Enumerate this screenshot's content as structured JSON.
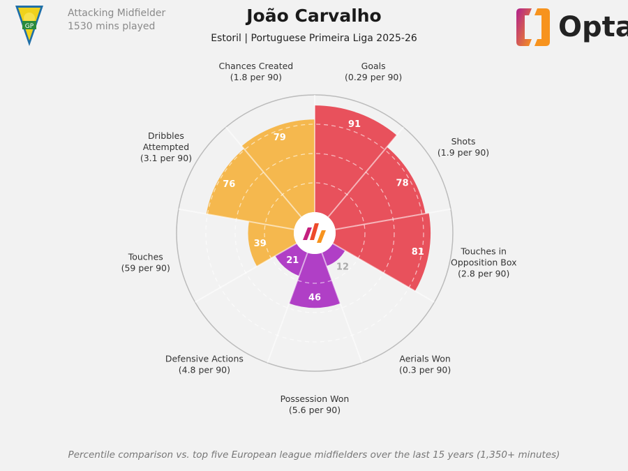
{
  "header": {
    "position": "Attacking Midfielder",
    "minutes": "1530 mins played",
    "player": "João Carvalho",
    "team_league": "Estoril | Portuguese Primeira Liga 2025-26",
    "brand": "Opta"
  },
  "footer": "Percentile comparison vs. top five European league midfielders over the last 15 years (1,350+ minutes)",
  "colors": {
    "attacking": "#e8515c",
    "possession": "#f5b84e",
    "defending": "#b03fc6",
    "background": "#f2f2f2"
  },
  "chart_data": {
    "type": "pie",
    "subtype": "polar-bar (pizza)",
    "range": [
      0,
      100
    ],
    "categories": [
      {
        "label": "Goals",
        "per90": "(0.29 per 90)",
        "value": 91,
        "group": "attacking"
      },
      {
        "label": "Shots",
        "per90": "(1.9 per 90)",
        "value": 78,
        "group": "attacking"
      },
      {
        "label": "Touches in Opposition Box",
        "per90": "(2.8 per 90)",
        "value": 81,
        "group": "attacking"
      },
      {
        "label": "Aerials Won",
        "per90": "(0.3 per 90)",
        "value": 12,
        "group": "defending"
      },
      {
        "label": "Possession Won",
        "per90": "(5.6 per 90)",
        "value": 46,
        "group": "defending"
      },
      {
        "label": "Defensive Actions",
        "per90": "(4.8 per 90)",
        "value": 21,
        "group": "defending"
      },
      {
        "label": "Touches",
        "per90": "(59 per 90)",
        "value": 39,
        "group": "possession"
      },
      {
        "label": "Dribbles Attempted",
        "per90": "(3.1 per 90)",
        "value": 76,
        "group": "possession"
      },
      {
        "label": "Chances Created",
        "per90": "(1.8 per 90)",
        "value": 79,
        "group": "possession"
      }
    ]
  }
}
